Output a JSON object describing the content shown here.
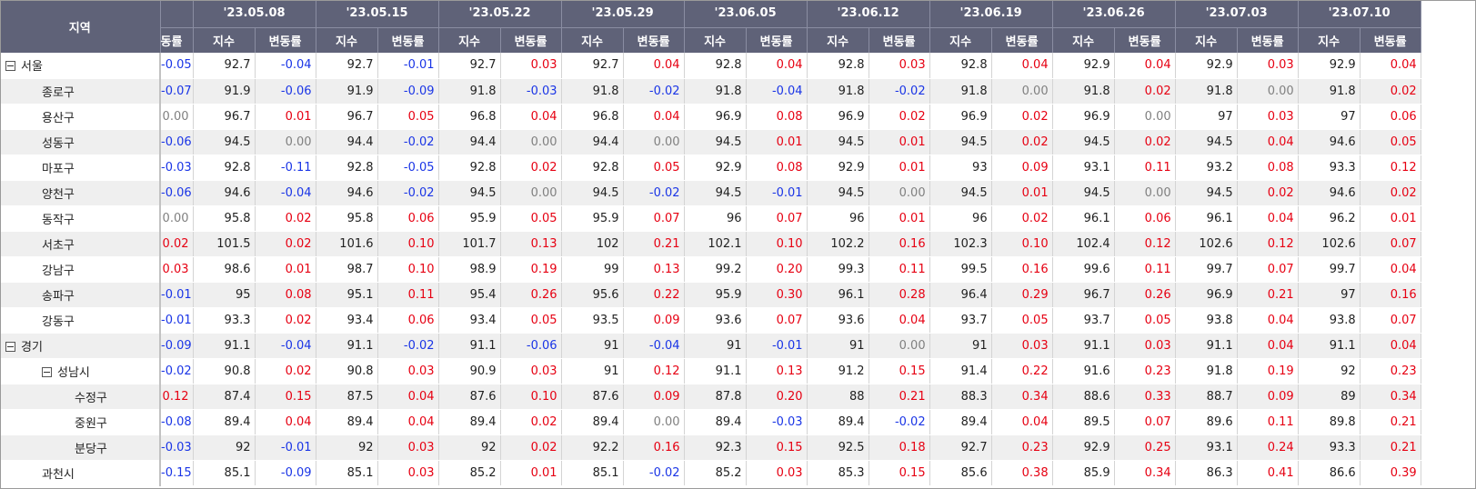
{
  "header": {
    "region_label": "지역",
    "first_partial_label": "동률",
    "index_label": "지수",
    "change_label": "변동률",
    "weeks": [
      "'23.05.08",
      "'23.05.15",
      "'23.05.22",
      "'23.05.29",
      "'23.06.05",
      "'23.06.12",
      "'23.06.19",
      "'23.06.26",
      "'23.07.03",
      "'23.07.10"
    ]
  },
  "rows": [
    {
      "name": "서울",
      "level": 0,
      "toggle": true,
      "first": "-0.05",
      "cells": [
        [
          "92.7",
          "-0.04"
        ],
        [
          "92.7",
          "-0.01"
        ],
        [
          "92.7",
          "0.03"
        ],
        [
          "92.7",
          "0.04"
        ],
        [
          "92.8",
          "0.04"
        ],
        [
          "92.8",
          "0.03"
        ],
        [
          "92.8",
          "0.04"
        ],
        [
          "92.9",
          "0.04"
        ],
        [
          "92.9",
          "0.03"
        ],
        [
          "92.9",
          "0.04"
        ]
      ]
    },
    {
      "name": "종로구",
      "level": 1,
      "first": "-0.07",
      "cells": [
        [
          "91.9",
          "-0.06"
        ],
        [
          "91.9",
          "-0.09"
        ],
        [
          "91.8",
          "-0.03"
        ],
        [
          "91.8",
          "-0.02"
        ],
        [
          "91.8",
          "-0.04"
        ],
        [
          "91.8",
          "-0.02"
        ],
        [
          "91.8",
          "0.00"
        ],
        [
          "91.8",
          "0.02"
        ],
        [
          "91.8",
          "0.00"
        ],
        [
          "91.8",
          "0.02"
        ]
      ]
    },
    {
      "name": "용산구",
      "level": 1,
      "first": "0.00",
      "cells": [
        [
          "96.7",
          "0.01"
        ],
        [
          "96.7",
          "0.05"
        ],
        [
          "96.8",
          "0.04"
        ],
        [
          "96.8",
          "0.04"
        ],
        [
          "96.9",
          "0.08"
        ],
        [
          "96.9",
          "0.02"
        ],
        [
          "96.9",
          "0.02"
        ],
        [
          "96.9",
          "0.00"
        ],
        [
          "97",
          "0.03"
        ],
        [
          "97",
          "0.06"
        ]
      ]
    },
    {
      "name": "성동구",
      "level": 1,
      "first": "-0.06",
      "cells": [
        [
          "94.5",
          "0.00"
        ],
        [
          "94.4",
          "-0.02"
        ],
        [
          "94.4",
          "0.00"
        ],
        [
          "94.4",
          "0.00"
        ],
        [
          "94.5",
          "0.01"
        ],
        [
          "94.5",
          "0.01"
        ],
        [
          "94.5",
          "0.02"
        ],
        [
          "94.5",
          "0.02"
        ],
        [
          "94.5",
          "0.04"
        ],
        [
          "94.6",
          "0.05"
        ]
      ]
    },
    {
      "name": "마포구",
      "level": 1,
      "first": "-0.03",
      "cells": [
        [
          "92.8",
          "-0.11"
        ],
        [
          "92.8",
          "-0.05"
        ],
        [
          "92.8",
          "0.02"
        ],
        [
          "92.8",
          "0.05"
        ],
        [
          "92.9",
          "0.08"
        ],
        [
          "92.9",
          "0.01"
        ],
        [
          "93",
          "0.09"
        ],
        [
          "93.1",
          "0.11"
        ],
        [
          "93.2",
          "0.08"
        ],
        [
          "93.3",
          "0.12"
        ]
      ]
    },
    {
      "name": "양천구",
      "level": 1,
      "first": "-0.06",
      "cells": [
        [
          "94.6",
          "-0.04"
        ],
        [
          "94.6",
          "-0.02"
        ],
        [
          "94.5",
          "0.00"
        ],
        [
          "94.5",
          "-0.02"
        ],
        [
          "94.5",
          "-0.01"
        ],
        [
          "94.5",
          "0.00"
        ],
        [
          "94.5",
          "0.01"
        ],
        [
          "94.5",
          "0.00"
        ],
        [
          "94.5",
          "0.02"
        ],
        [
          "94.6",
          "0.02"
        ]
      ]
    },
    {
      "name": "동작구",
      "level": 1,
      "first": "0.00",
      "cells": [
        [
          "95.8",
          "0.02"
        ],
        [
          "95.8",
          "0.06"
        ],
        [
          "95.9",
          "0.05"
        ],
        [
          "95.9",
          "0.07"
        ],
        [
          "96",
          "0.07"
        ],
        [
          "96",
          "0.01"
        ],
        [
          "96",
          "0.02"
        ],
        [
          "96.1",
          "0.06"
        ],
        [
          "96.1",
          "0.04"
        ],
        [
          "96.2",
          "0.01"
        ]
      ]
    },
    {
      "name": "서초구",
      "level": 1,
      "first": "0.02",
      "cells": [
        [
          "101.5",
          "0.02"
        ],
        [
          "101.6",
          "0.10"
        ],
        [
          "101.7",
          "0.13"
        ],
        [
          "102",
          "0.21"
        ],
        [
          "102.1",
          "0.10"
        ],
        [
          "102.2",
          "0.16"
        ],
        [
          "102.3",
          "0.10"
        ],
        [
          "102.4",
          "0.12"
        ],
        [
          "102.6",
          "0.12"
        ],
        [
          "102.6",
          "0.07"
        ]
      ]
    },
    {
      "name": "강남구",
      "level": 1,
      "first": "0.03",
      "cells": [
        [
          "98.6",
          "0.01"
        ],
        [
          "98.7",
          "0.10"
        ],
        [
          "98.9",
          "0.19"
        ],
        [
          "99",
          "0.13"
        ],
        [
          "99.2",
          "0.20"
        ],
        [
          "99.3",
          "0.11"
        ],
        [
          "99.5",
          "0.16"
        ],
        [
          "99.6",
          "0.11"
        ],
        [
          "99.7",
          "0.07"
        ],
        [
          "99.7",
          "0.04"
        ]
      ]
    },
    {
      "name": "송파구",
      "level": 1,
      "first": "-0.01",
      "cells": [
        [
          "95",
          "0.08"
        ],
        [
          "95.1",
          "0.11"
        ],
        [
          "95.4",
          "0.26"
        ],
        [
          "95.6",
          "0.22"
        ],
        [
          "95.9",
          "0.30"
        ],
        [
          "96.1",
          "0.28"
        ],
        [
          "96.4",
          "0.29"
        ],
        [
          "96.7",
          "0.26"
        ],
        [
          "96.9",
          "0.21"
        ],
        [
          "97",
          "0.16"
        ]
      ]
    },
    {
      "name": "강동구",
      "level": 1,
      "first": "-0.01",
      "cells": [
        [
          "93.3",
          "0.02"
        ],
        [
          "93.4",
          "0.06"
        ],
        [
          "93.4",
          "0.05"
        ],
        [
          "93.5",
          "0.09"
        ],
        [
          "93.6",
          "0.07"
        ],
        [
          "93.6",
          "0.04"
        ],
        [
          "93.7",
          "0.05"
        ],
        [
          "93.7",
          "0.05"
        ],
        [
          "93.8",
          "0.04"
        ],
        [
          "93.8",
          "0.07"
        ]
      ]
    },
    {
      "name": "경기",
      "level": 0,
      "toggle": true,
      "first": "-0.09",
      "cells": [
        [
          "91.1",
          "-0.04"
        ],
        [
          "91.1",
          "-0.02"
        ],
        [
          "91.1",
          "-0.06"
        ],
        [
          "91",
          "-0.04"
        ],
        [
          "91",
          "-0.01"
        ],
        [
          "91",
          "0.00"
        ],
        [
          "91",
          "0.03"
        ],
        [
          "91.1",
          "0.03"
        ],
        [
          "91.1",
          "0.04"
        ],
        [
          "91.1",
          "0.04"
        ]
      ]
    },
    {
      "name": "성남시",
      "level": 1,
      "toggle": true,
      "first": "-0.02",
      "cells": [
        [
          "90.8",
          "0.02"
        ],
        [
          "90.8",
          "0.03"
        ],
        [
          "90.9",
          "0.03"
        ],
        [
          "91",
          "0.12"
        ],
        [
          "91.1",
          "0.13"
        ],
        [
          "91.2",
          "0.15"
        ],
        [
          "91.4",
          "0.22"
        ],
        [
          "91.6",
          "0.23"
        ],
        [
          "91.8",
          "0.19"
        ],
        [
          "92",
          "0.23"
        ]
      ]
    },
    {
      "name": "수정구",
      "level": 2,
      "first": "0.12",
      "cells": [
        [
          "87.4",
          "0.15"
        ],
        [
          "87.5",
          "0.04"
        ],
        [
          "87.6",
          "0.10"
        ],
        [
          "87.6",
          "0.09"
        ],
        [
          "87.8",
          "0.20"
        ],
        [
          "88",
          "0.21"
        ],
        [
          "88.3",
          "0.34"
        ],
        [
          "88.6",
          "0.33"
        ],
        [
          "88.7",
          "0.09"
        ],
        [
          "89",
          "0.34"
        ]
      ]
    },
    {
      "name": "중원구",
      "level": 2,
      "first": "-0.08",
      "cells": [
        [
          "89.4",
          "0.04"
        ],
        [
          "89.4",
          "0.04"
        ],
        [
          "89.4",
          "0.02"
        ],
        [
          "89.4",
          "0.00"
        ],
        [
          "89.4",
          "-0.03"
        ],
        [
          "89.4",
          "-0.02"
        ],
        [
          "89.4",
          "0.04"
        ],
        [
          "89.5",
          "0.07"
        ],
        [
          "89.6",
          "0.11"
        ],
        [
          "89.8",
          "0.21"
        ]
      ]
    },
    {
      "name": "분당구",
      "level": 2,
      "first": "-0.03",
      "cells": [
        [
          "92",
          "-0.01"
        ],
        [
          "92",
          "0.03"
        ],
        [
          "92",
          "0.02"
        ],
        [
          "92.2",
          "0.16"
        ],
        [
          "92.3",
          "0.15"
        ],
        [
          "92.5",
          "0.18"
        ],
        [
          "92.7",
          "0.23"
        ],
        [
          "92.9",
          "0.25"
        ],
        [
          "93.1",
          "0.24"
        ],
        [
          "93.3",
          "0.21"
        ]
      ]
    },
    {
      "name": "과천시",
      "level": 1,
      "first": "-0.15",
      "cells": [
        [
          "85.1",
          "-0.09"
        ],
        [
          "85.1",
          "0.03"
        ],
        [
          "85.2",
          "0.01"
        ],
        [
          "85.1",
          "-0.02"
        ],
        [
          "85.2",
          "0.03"
        ],
        [
          "85.3",
          "0.15"
        ],
        [
          "85.6",
          "0.38"
        ],
        [
          "85.9",
          "0.34"
        ],
        [
          "86.3",
          "0.41"
        ],
        [
          "86.6",
          "0.39"
        ]
      ]
    }
  ],
  "colors": {
    "header_bg": "#5f6278",
    "negative": "#1a35e6",
    "positive": "#e60012",
    "zero": "#808080",
    "alt_row": "#efefef"
  }
}
